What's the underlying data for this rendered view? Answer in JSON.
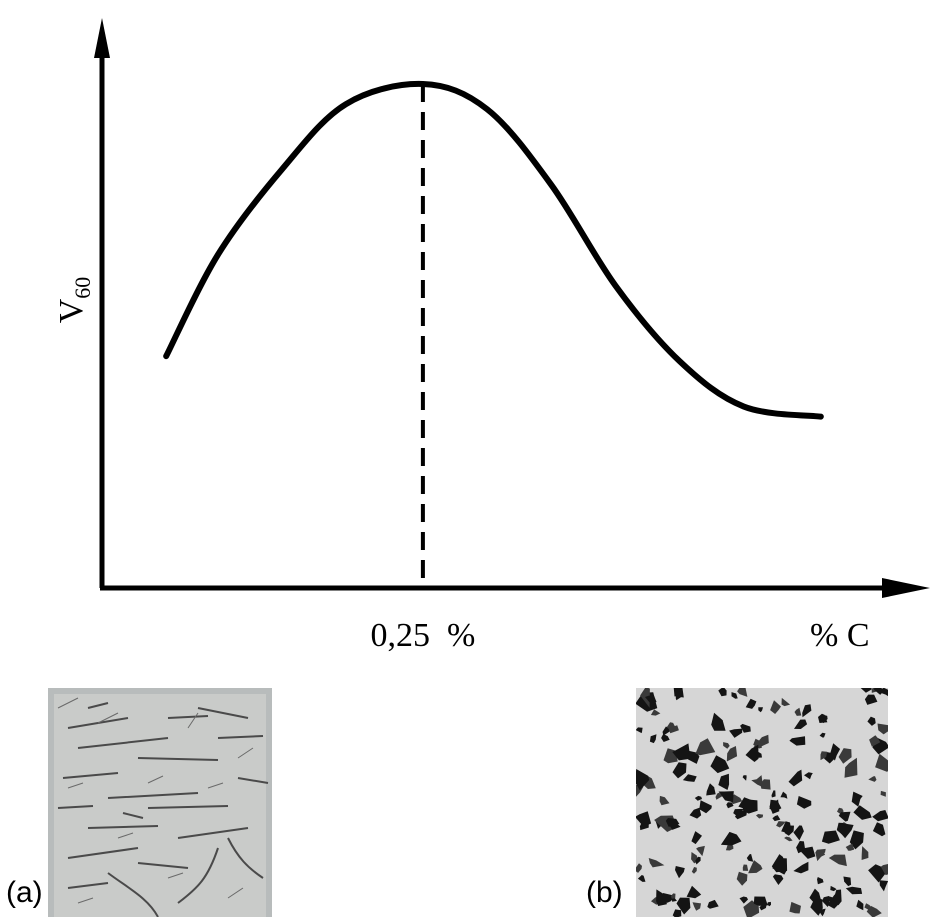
{
  "chart_data": {
    "type": "line",
    "xlabel": "% C",
    "ylabel": "V",
    "ylabel_sub": "60",
    "xlim": [
      0,
      0.61
    ],
    "ylim": [
      0,
      1.0
    ],
    "series": [
      {
        "x": [
          0.05,
          0.09,
          0.14,
          0.19,
          0.25,
          0.3,
          0.35,
          0.4,
          0.45,
          0.5,
          0.56
        ],
        "y": [
          0.46,
          0.66,
          0.83,
          0.96,
          1.0,
          0.95,
          0.8,
          0.6,
          0.45,
          0.36,
          0.34
        ]
      }
    ],
    "annotations": [
      {
        "x": 0.25,
        "label": "0,25  %",
        "style": "dashed-vertical"
      }
    ],
    "grid": false
  },
  "panels": [
    {
      "label": "(a)",
      "description_icon": "micrograph-widmanstatten-icon"
    },
    {
      "label": "(b)",
      "description_icon": "micrograph-ferrite-pearlite-icon"
    }
  ]
}
